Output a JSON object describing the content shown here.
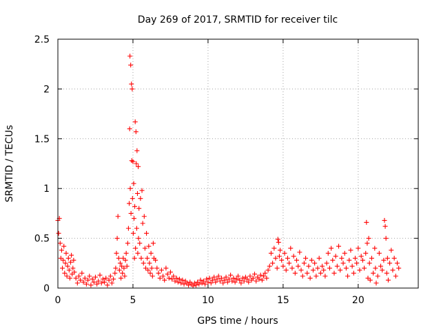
{
  "chart_data": {
    "type": "scatter",
    "title": "Day 269 of 2017, SRMTID for receiver tilc",
    "xlabel": "GPS time / hours",
    "ylabel": "SRMTID / TECUs",
    "xlim": [
      0,
      24
    ],
    "ylim": [
      0,
      2.5
    ],
    "x_ticks": [
      0,
      5,
      10,
      15,
      20
    ],
    "y_ticks": [
      0,
      0.5,
      1,
      1.5,
      2,
      2.5
    ],
    "x_tick_labels": [
      "0",
      "5",
      "10",
      "15",
      "20"
    ],
    "y_tick_labels": [
      "0",
      "0.5",
      "1",
      "1.5",
      "2",
      "2.5"
    ],
    "grid": true,
    "marker": "+",
    "marker_color": "#ff0000",
    "series": [
      {
        "name": "SRMTID tilc",
        "x": [
          0.0,
          0.05,
          0.1,
          0.15,
          0.2,
          0.25,
          0.3,
          0.35,
          0.4,
          0.45,
          0.5,
          0.55,
          0.6,
          0.65,
          0.7,
          0.75,
          0.8,
          0.85,
          0.9,
          0.95,
          1.0,
          1.05,
          1.1,
          1.2,
          1.3,
          1.4,
          1.5,
          1.6,
          1.7,
          1.8,
          1.9,
          2.0,
          2.1,
          2.2,
          2.3,
          2.4,
          2.5,
          2.6,
          2.7,
          2.8,
          2.9,
          3.0,
          3.1,
          3.2,
          3.3,
          3.4,
          3.5,
          3.6,
          3.7,
          3.8,
          3.85,
          3.9,
          3.95,
          4.0,
          4.05,
          4.1,
          4.15,
          4.2,
          4.25,
          4.3,
          4.35,
          4.4,
          4.45,
          4.5,
          4.55,
          4.6,
          4.65,
          4.7,
          4.75,
          4.78,
          4.8,
          4.82,
          4.85,
          4.87,
          4.9,
          4.92,
          4.95,
          4.97,
          5.0,
          5.02,
          5.05,
          5.07,
          5.1,
          5.12,
          5.15,
          5.17,
          5.2,
          5.22,
          5.25,
          5.27,
          5.3,
          5.32,
          5.35,
          5.37,
          5.4,
          5.45,
          5.5,
          5.55,
          5.6,
          5.65,
          5.7,
          5.75,
          5.8,
          5.85,
          5.9,
          5.95,
          6.0,
          6.05,
          6.1,
          6.15,
          6.2,
          6.25,
          6.3,
          6.35,
          6.4,
          6.5,
          6.6,
          6.7,
          6.8,
          6.9,
          7.0,
          7.1,
          7.2,
          7.3,
          7.4,
          7.5,
          7.6,
          7.7,
          7.8,
          7.9,
          8.0,
          8.1,
          8.2,
          8.3,
          8.4,
          8.5,
          8.6,
          8.7,
          8.8,
          8.9,
          9.0,
          9.1,
          9.2,
          9.3,
          9.4,
          9.5,
          9.6,
          9.7,
          9.8,
          9.9,
          10.0,
          10.1,
          10.2,
          10.3,
          10.4,
          10.5,
          10.6,
          10.7,
          10.8,
          10.9,
          11.0,
          11.1,
          11.2,
          11.3,
          11.4,
          11.5,
          11.6,
          11.7,
          11.8,
          11.9,
          12.0,
          12.1,
          12.2,
          12.3,
          12.4,
          12.5,
          12.6,
          12.7,
          12.8,
          12.9,
          13.0,
          13.1,
          13.2,
          13.3,
          13.4,
          13.5,
          13.6,
          13.7,
          13.8,
          13.9,
          14.0,
          14.1,
          14.2,
          14.3,
          14.4,
          14.5,
          14.6,
          14.65,
          14.7,
          14.75,
          14.8,
          14.9,
          15.0,
          15.1,
          15.2,
          15.3,
          15.4,
          15.5,
          15.6,
          15.7,
          15.8,
          15.9,
          16.0,
          16.1,
          16.2,
          16.3,
          16.4,
          16.5,
          16.6,
          16.7,
          16.8,
          16.9,
          17.0,
          17.1,
          17.2,
          17.3,
          17.4,
          17.5,
          17.6,
          17.7,
          17.8,
          17.9,
          18.0,
          18.1,
          18.2,
          18.3,
          18.4,
          18.5,
          18.6,
          18.7,
          18.8,
          18.9,
          19.0,
          19.1,
          19.2,
          19.3,
          19.4,
          19.5,
          19.6,
          19.7,
          19.8,
          19.9,
          20.0,
          20.1,
          20.2,
          20.3,
          20.4,
          20.5,
          20.55,
          20.6,
          20.65,
          20.7,
          20.75,
          20.8,
          20.9,
          21.0,
          21.1,
          21.15,
          21.2,
          21.3,
          21.4,
          21.5,
          21.6,
          21.7,
          21.75,
          21.8,
          21.85,
          21.9,
          21.95,
          22.0,
          22.1,
          22.2,
          22.3,
          22.4,
          22.5,
          22.6,
          22.7
        ],
        "y": [
          0.68,
          0.55,
          0.7,
          0.45,
          0.3,
          0.38,
          0.2,
          0.28,
          0.42,
          0.15,
          0.25,
          0.35,
          0.12,
          0.22,
          0.3,
          0.18,
          0.1,
          0.26,
          0.33,
          0.14,
          0.2,
          0.28,
          0.16,
          0.1,
          0.05,
          0.12,
          0.08,
          0.15,
          0.06,
          0.1,
          0.04,
          0.08,
          0.12,
          0.03,
          0.09,
          0.06,
          0.11,
          0.04,
          0.07,
          0.13,
          0.05,
          0.09,
          0.06,
          0.1,
          0.03,
          0.08,
          0.12,
          0.05,
          0.09,
          0.15,
          0.2,
          0.35,
          0.5,
          0.72,
          0.3,
          0.18,
          0.25,
          0.1,
          0.22,
          0.15,
          0.3,
          0.2,
          0.12,
          0.28,
          0.35,
          0.22,
          0.45,
          0.6,
          0.85,
          1.6,
          2.33,
          1.0,
          2.24,
          0.75,
          2.05,
          1.28,
          2.0,
          0.9,
          1.27,
          0.55,
          1.05,
          0.7,
          0.3,
          0.82,
          1.67,
          0.4,
          1.57,
          1.25,
          0.6,
          1.38,
          0.95,
          0.35,
          1.22,
          0.5,
          0.8,
          0.45,
          0.9,
          0.3,
          0.98,
          0.65,
          0.25,
          0.72,
          0.4,
          0.2,
          0.55,
          0.3,
          0.18,
          0.42,
          0.25,
          0.15,
          0.35,
          0.2,
          0.12,
          0.45,
          0.3,
          0.28,
          0.2,
          0.15,
          0.1,
          0.18,
          0.12,
          0.08,
          0.2,
          0.14,
          0.1,
          0.16,
          0.09,
          0.12,
          0.07,
          0.1,
          0.06,
          0.09,
          0.05,
          0.08,
          0.04,
          0.07,
          0.05,
          0.03,
          0.06,
          0.04,
          0.02,
          0.05,
          0.03,
          0.06,
          0.04,
          0.08,
          0.05,
          0.07,
          0.04,
          0.09,
          0.06,
          0.1,
          0.05,
          0.08,
          0.11,
          0.06,
          0.09,
          0.12,
          0.07,
          0.1,
          0.05,
          0.08,
          0.11,
          0.06,
          0.09,
          0.13,
          0.07,
          0.1,
          0.06,
          0.09,
          0.12,
          0.08,
          0.05,
          0.1,
          0.07,
          0.11,
          0.09,
          0.06,
          0.12,
          0.08,
          0.1,
          0.14,
          0.07,
          0.11,
          0.09,
          0.13,
          0.08,
          0.12,
          0.15,
          0.1,
          0.18,
          0.22,
          0.35,
          0.25,
          0.4,
          0.3,
          0.2,
          0.49,
          0.46,
          0.32,
          0.38,
          0.28,
          0.22,
          0.35,
          0.18,
          0.3,
          0.25,
          0.4,
          0.2,
          0.32,
          0.15,
          0.28,
          0.22,
          0.36,
          0.18,
          0.12,
          0.25,
          0.3,
          0.15,
          0.22,
          0.1,
          0.28,
          0.18,
          0.25,
          0.12,
          0.2,
          0.3,
          0.15,
          0.22,
          0.18,
          0.12,
          0.25,
          0.35,
          0.2,
          0.4,
          0.28,
          0.15,
          0.32,
          0.22,
          0.42,
          0.18,
          0.3,
          0.25,
          0.35,
          0.2,
          0.12,
          0.28,
          0.38,
          0.22,
          0.15,
          0.3,
          0.25,
          0.4,
          0.18,
          0.32,
          0.28,
          0.2,
          0.35,
          0.66,
          0.45,
          0.1,
          0.5,
          0.25,
          0.08,
          0.3,
          0.15,
          0.4,
          0.2,
          0.05,
          0.12,
          0.35,
          0.22,
          0.18,
          0.28,
          0.68,
          0.62,
          0.5,
          0.15,
          0.3,
          0.08,
          0.25,
          0.38,
          0.18,
          0.3,
          0.12,
          0.25,
          0.2
        ]
      }
    ]
  }
}
